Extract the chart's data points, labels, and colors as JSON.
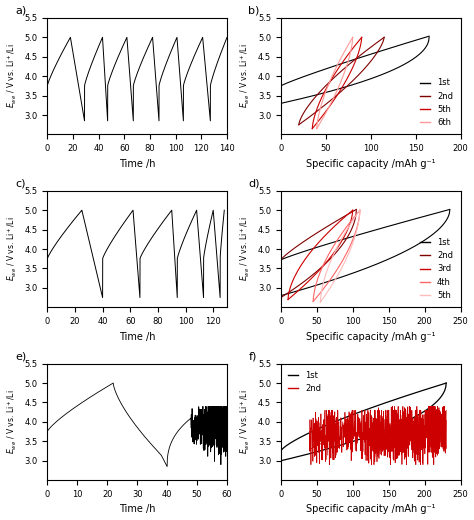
{
  "fig_width": 4.74,
  "fig_height": 5.2,
  "dpi": 100,
  "background": "#ffffff",
  "panel_labels": [
    "a)",
    "b)",
    "c)",
    "d)",
    "e)",
    "f)"
  ],
  "xlabel_time": "Time /h",
  "xlabel_cap": "Specific capacity /mAh g⁻¹",
  "ylim": [
    2.5,
    5.5
  ],
  "yticks_main": [
    3.0,
    3.5,
    4.0,
    4.5,
    5.0,
    5.5
  ],
  "colors_b": [
    "#000000",
    "#800000",
    "#CC0000",
    "#FF9999"
  ],
  "colors_d": [
    "#000000",
    "#800000",
    "#CC0000",
    "#FF6666",
    "#FFBBBB"
  ],
  "legend_b": [
    "1st",
    "2nd",
    "5th",
    "6th"
  ],
  "legend_d": [
    "1st",
    "2nd",
    "3rd",
    "4th",
    "5th"
  ],
  "legend_f": [
    "1st",
    "2nd"
  ]
}
